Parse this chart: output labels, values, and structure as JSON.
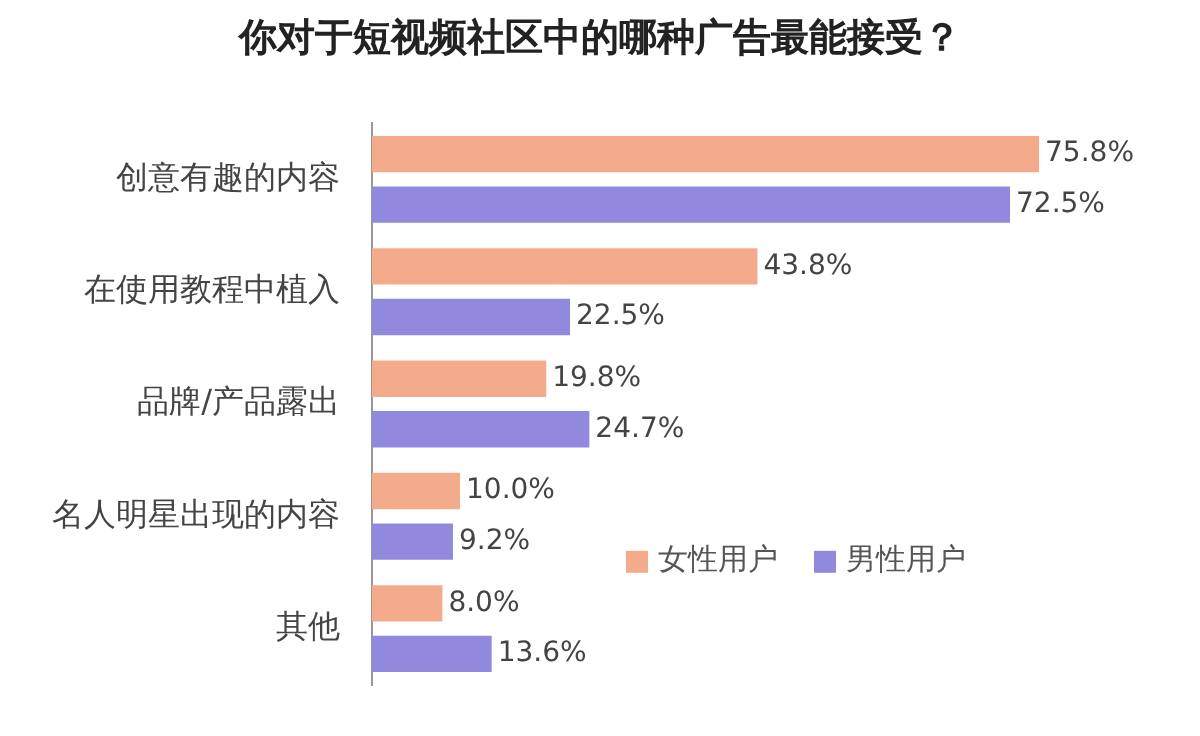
{
  "chart_data": {
    "type": "bar",
    "orientation": "horizontal",
    "title": "你对于短视频社区中的哪种广告最能接受？",
    "categories": [
      "创意有趣的内容",
      "在使用教程中植入",
      "品牌/产品露出",
      "名人明星出现的内容",
      "其他"
    ],
    "series": [
      {
        "name": "女性用户",
        "color": "#f4ab8c",
        "values": [
          75.8,
          43.8,
          19.8,
          10.0,
          8.0
        ],
        "value_labels": [
          "75.8%",
          "43.8%",
          "19.8%",
          "10.0%",
          "8.0%"
        ]
      },
      {
        "name": "男性用户",
        "color": "#9189dd",
        "values": [
          72.5,
          22.5,
          24.7,
          9.2,
          13.6
        ],
        "value_labels": [
          "72.5%",
          "22.5%",
          "24.7%",
          "9.2%",
          "13.6%"
        ]
      }
    ],
    "legend": "bottom right",
    "grid": false
  }
}
